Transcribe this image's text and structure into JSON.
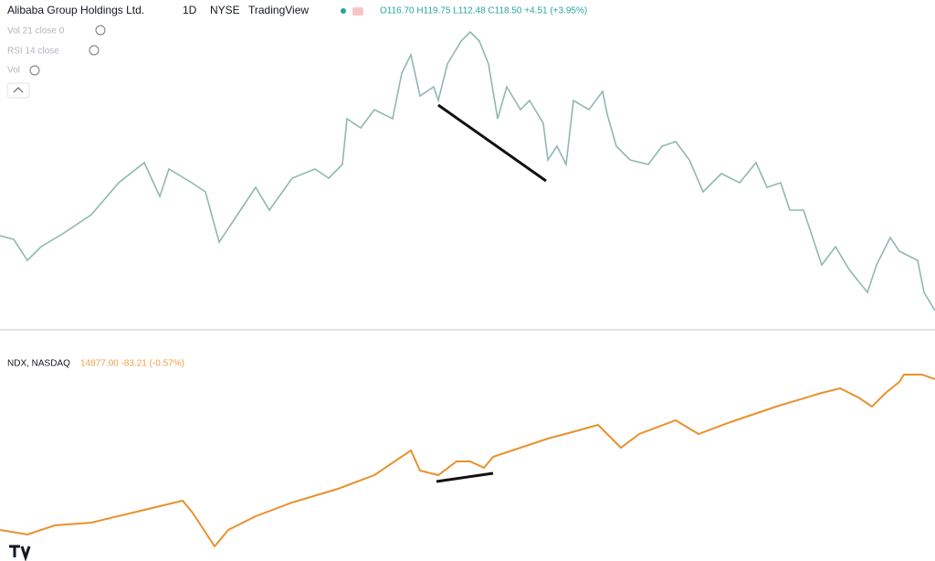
{
  "header": {
    "symbol": "Alibaba Group Holdings Ltd.",
    "interval": "1D",
    "exchange": "NYSE",
    "source": "TradingView",
    "ohlc": "O116.70 H119.75 L112.48 C118.50 +4.51 (+3.95%)"
  },
  "indicators": [
    "Vol 21 close 0",
    "RSI 14 close",
    "Vol"
  ],
  "lower_pane": {
    "symbol": "NDX, NASDAQ",
    "quote": "14877.00 -83.21 (-0.57%)"
  }
}
